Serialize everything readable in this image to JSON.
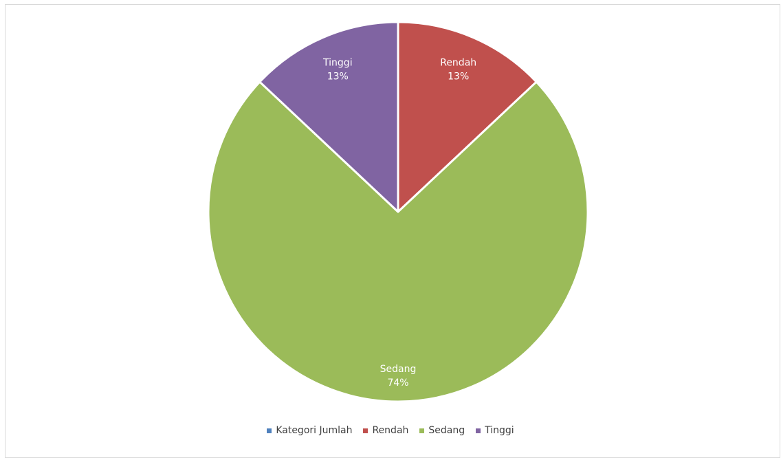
{
  "chart_data": {
    "type": "pie",
    "categories": [
      "Kategori Jumlah",
      "Rendah",
      "Sedang",
      "Tinggi"
    ],
    "values": [
      0,
      13,
      74,
      13
    ],
    "data_labels": [
      "",
      "13%",
      "74%",
      "13%"
    ],
    "colors": [
      "#4f81bd",
      "#c0504d",
      "#9bbb59",
      "#8064a2"
    ],
    "legend_position": "bottom",
    "start_angle": "12 o'clock, clockwise"
  }
}
